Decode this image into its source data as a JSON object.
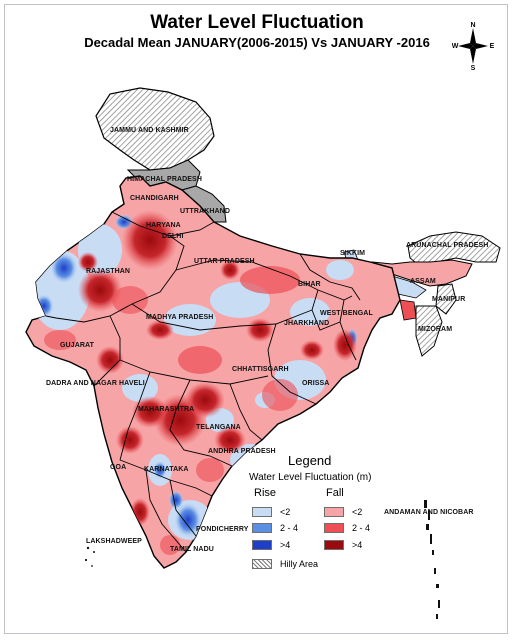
{
  "title": "Water Level Fluctuation",
  "subtitle": "Decadal Mean JANUARY(2006-2015) Vs JANUARY -2016",
  "compass": {
    "n": "N",
    "s": "S",
    "e": "E",
    "w": "W"
  },
  "states": [
    "JAMMU AND KASHMIR",
    "HIMACHAL PRADESH",
    "CHANDIGARH",
    "UTTRAKHAND",
    "HARYANA",
    "DELHI",
    "RAJASTHAN",
    "UTTAR PRADESH",
    "SIKKIM",
    "ARUNACHAL PRADESH",
    "ASSAM",
    "BIHAR",
    "WEST BENGAL",
    "MANIPUR",
    "MIZORAM",
    "JHARKHAND",
    "GUJARAT",
    "MADHYA PRADESH",
    "CHHATTISGARH",
    "ORISSA",
    "DADRA AND NAGAR HAVELI",
    "MAHARASHTRA",
    "TELANGANA",
    "ANDHRA PRADESH",
    "GOA",
    "KARNATAKA",
    "PONDICHERRY",
    "TAMIL NADU",
    "LAKSHADWEEP",
    "ANDAMAN AND NICOBAR"
  ],
  "colors": {
    "rise_lt2": "#c8dcf4",
    "rise_2_4": "#5b8fe4",
    "rise_gt4": "#1f3fc8",
    "fall_lt2": "#f6a4a6",
    "fall_2_4": "#ee4f55",
    "fall_gt4": "#9b0a0e",
    "hilly": "#a8a8a8"
  },
  "legend": {
    "title": "Legend",
    "subtitle": "Water Level Fluctuation  (m)",
    "rise_header": "Rise",
    "fall_header": "Fall",
    "rise_items": [
      {
        "label": "<2",
        "color": "#c8dcf4"
      },
      {
        "label": "2 - 4",
        "color": "#5b8fe4"
      },
      {
        "label": ">4",
        "color": "#1f3fc8"
      }
    ],
    "fall_items": [
      {
        "label": "<2",
        "color": "#f6a4a6"
      },
      {
        "label": "2 - 4",
        "color": "#ee4f55"
      },
      {
        "label": ">4",
        "color": "#9b0a0e"
      }
    ],
    "hilly_label": "Hilly Area"
  }
}
